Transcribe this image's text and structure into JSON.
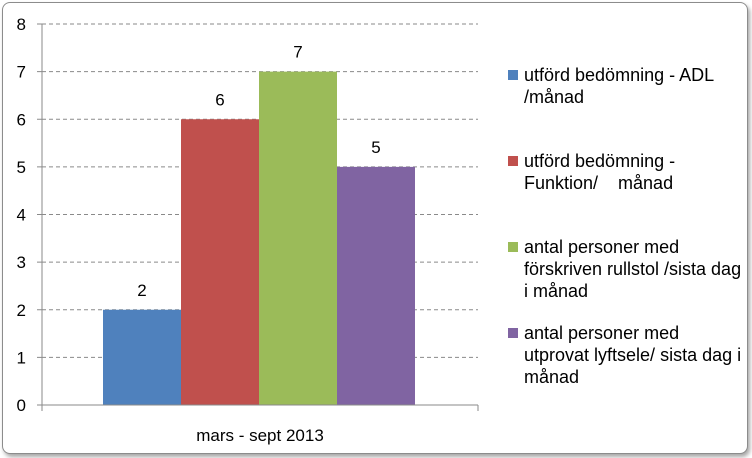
{
  "chart_data": {
    "type": "bar",
    "categories": [
      "mars - sept 2013"
    ],
    "series": [
      {
        "name": "utförd bedömning - ADL /månad",
        "values": [
          2
        ],
        "color": "#4f81bd"
      },
      {
        "name": "utförd bedömning - Funktion/    månad",
        "values": [
          6
        ],
        "color": "#c0504d"
      },
      {
        "name": "antal personer med förskriven rullstol /sista dag i månad",
        "values": [
          7
        ],
        "color": "#9bbb59"
      },
      {
        "name": "antal personer med utprovat lyftsele/ sista dag i månad",
        "values": [
          5
        ],
        "color": "#8064a2"
      }
    ],
    "data_labels": [
      "2",
      "6",
      "7",
      "5"
    ],
    "yticks": [
      "0",
      "1",
      "2",
      "3",
      "4",
      "5",
      "6",
      "7",
      "8"
    ],
    "ylim": [
      0,
      8
    ],
    "grid": true,
    "legend_position": "right",
    "title": "",
    "xlabel": "",
    "ylabel": ""
  }
}
